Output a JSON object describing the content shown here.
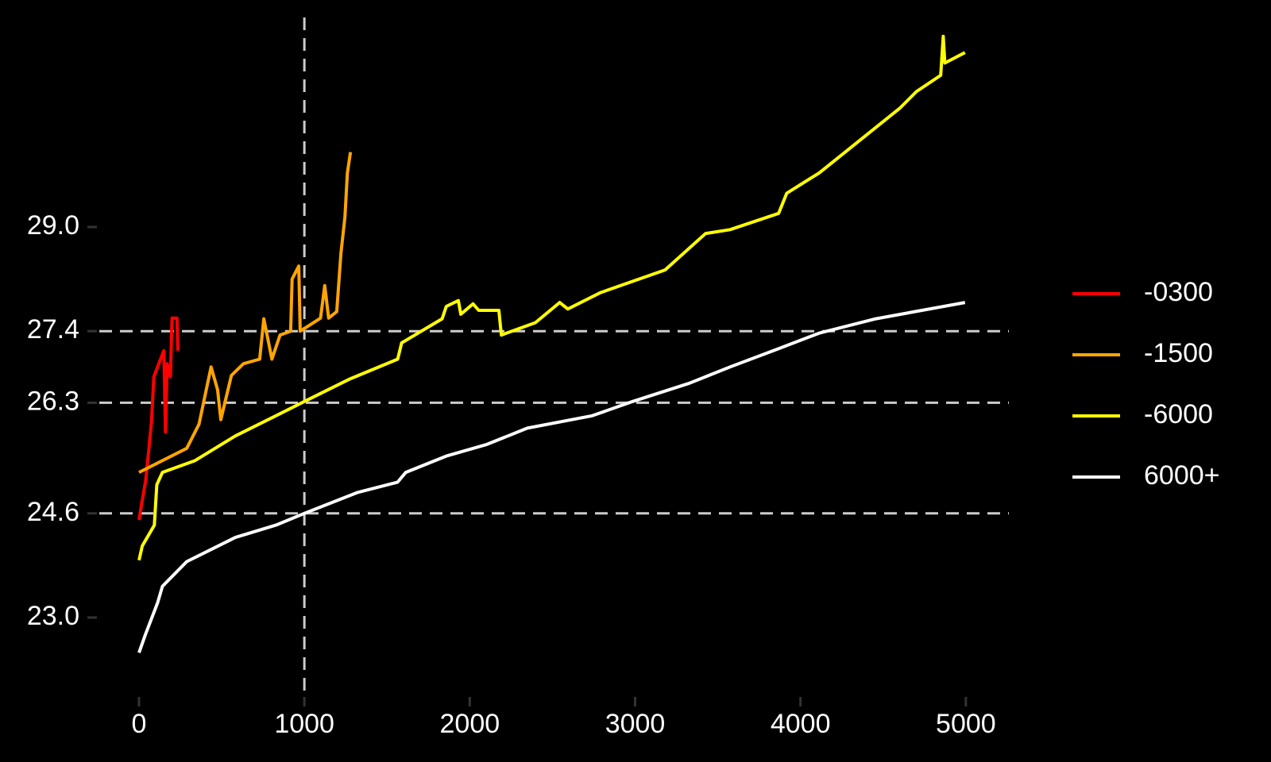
{
  "chart_data": {
    "type": "line",
    "xlim": [
      -240,
      5260
    ],
    "ylim": [
      22.0,
      32.0
    ],
    "xticks": [
      0,
      1000,
      2000,
      3000,
      4000,
      5000
    ],
    "yticks": [
      {
        "value": 23.0,
        "label": "23.0"
      },
      24.6,
      26.3,
      27.4,
      {
        "value": 29.0,
        "label": "29.0"
      }
    ],
    "hlines": [
      24.6,
      26.3,
      27.4
    ],
    "vlines": [
      1000
    ],
    "reference_line_color": "#cccccc",
    "legend": "right",
    "series": [
      {
        "name": "-0300",
        "color": "#ff0000",
        "x": [
          0,
          15,
          40,
          60,
          75,
          90,
          120,
          150,
          160,
          170,
          190,
          200,
          230,
          235
        ],
        "values": [
          24.5,
          24.73,
          25.1,
          25.6,
          26.0,
          26.7,
          26.9,
          27.1,
          25.85,
          26.9,
          26.7,
          27.6,
          27.6,
          27.1
        ]
      },
      {
        "name": "-1500",
        "color": "#ffa500",
        "x": [
          0,
          289,
          363,
          436,
          475,
          495,
          559,
          632,
          730,
          755,
          804,
          853,
          917,
          926,
          966,
          975,
          1098,
          1123,
          1147,
          1196,
          1221,
          1245,
          1260,
          1279
        ],
        "values": [
          25.23,
          25.6,
          25.97,
          26.85,
          26.5,
          26.04,
          26.72,
          26.9,
          26.97,
          27.59,
          26.97,
          27.34,
          27.4,
          28.2,
          28.4,
          27.4,
          27.6,
          28.1,
          27.6,
          27.7,
          28.6,
          29.15,
          29.83,
          30.15
        ]
      },
      {
        "name": "-6000",
        "color": "#ffff00",
        "x": [
          0,
          20,
          93,
          108,
          142,
          338,
          583,
          828,
          1000,
          1270,
          1564,
          1588,
          1833,
          1858,
          1931,
          1946,
          2020,
          2054,
          2176,
          2191,
          2397,
          2544,
          2593,
          2789,
          3181,
          3426,
          3574,
          3868,
          3917,
          4113,
          4358,
          4603,
          4701,
          4848,
          4863,
          4873,
          4995
        ],
        "values": [
          23.88,
          24.1,
          24.42,
          25.04,
          25.23,
          25.41,
          25.79,
          26.1,
          26.32,
          26.66,
          26.97,
          27.22,
          27.59,
          27.78,
          27.87,
          27.66,
          27.82,
          27.72,
          27.72,
          27.34,
          27.53,
          27.84,
          27.74,
          27.99,
          28.34,
          28.9,
          28.96,
          29.21,
          29.52,
          29.83,
          30.33,
          30.83,
          31.08,
          31.33,
          31.93,
          31.52,
          31.68
        ]
      },
      {
        "name": "6000+",
        "color": "#ffffff",
        "x": [
          0,
          39,
          113,
          142,
          289,
          583,
          828,
          1000,
          1319,
          1564,
          1613,
          1858,
          2103,
          2348,
          2740,
          2985,
          3328,
          3574,
          3868,
          4113,
          4456,
          4995
        ],
        "values": [
          22.46,
          22.74,
          23.23,
          23.48,
          23.86,
          24.23,
          24.42,
          24.6,
          24.92,
          25.08,
          25.23,
          25.48,
          25.66,
          25.91,
          26.1,
          26.32,
          26.6,
          26.85,
          27.13,
          27.37,
          27.59,
          27.84
        ]
      }
    ]
  }
}
